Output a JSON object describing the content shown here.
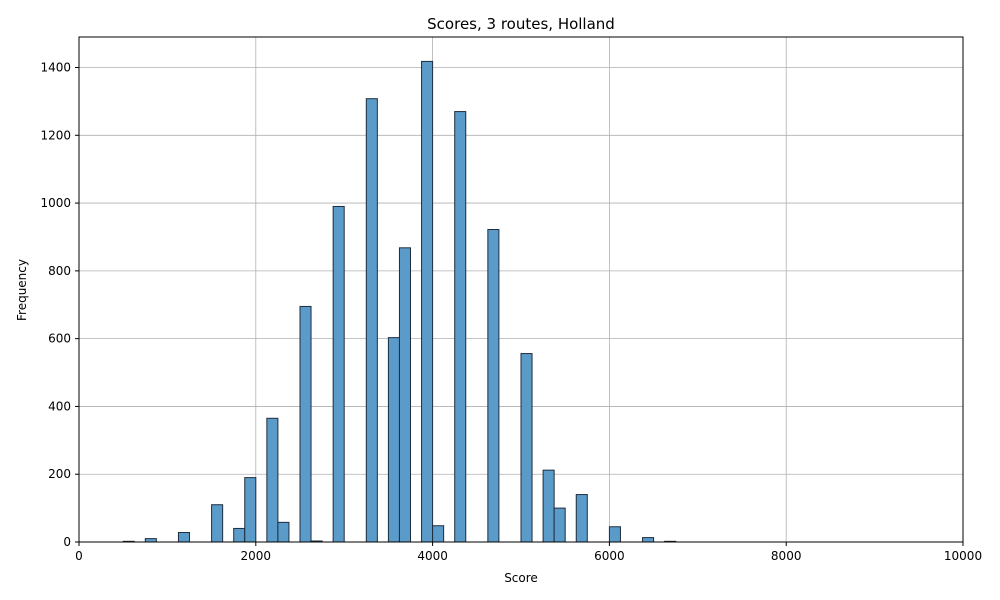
{
  "chart_data": {
    "type": "bar",
    "title": "Scores, 3 routes, Holland",
    "xlabel": "Score",
    "ylabel": "Frequency",
    "xlim": [
      0,
      10000
    ],
    "ylim": [
      0,
      1490
    ],
    "xticks": [
      0,
      2000,
      4000,
      6000,
      8000,
      10000
    ],
    "yticks": [
      0,
      200,
      400,
      600,
      800,
      1000,
      1200,
      1400
    ],
    "grid": true,
    "bin_width": 125,
    "bar_color": "#5b9bc9",
    "edge_color": "#1f2d3d",
    "bars": [
      {
        "x": 500,
        "value": 2
      },
      {
        "x": 750,
        "value": 10
      },
      {
        "x": 1125,
        "value": 28
      },
      {
        "x": 1500,
        "value": 110
      },
      {
        "x": 1750,
        "value": 40
      },
      {
        "x": 1875,
        "value": 190
      },
      {
        "x": 2125,
        "value": 365
      },
      {
        "x": 2250,
        "value": 58
      },
      {
        "x": 2500,
        "value": 695
      },
      {
        "x": 2625,
        "value": 3
      },
      {
        "x": 2875,
        "value": 990
      },
      {
        "x": 3250,
        "value": 1308
      },
      {
        "x": 3500,
        "value": 603
      },
      {
        "x": 3625,
        "value": 868
      },
      {
        "x": 3875,
        "value": 1418
      },
      {
        "x": 4000,
        "value": 48
      },
      {
        "x": 4250,
        "value": 1270
      },
      {
        "x": 4625,
        "value": 922
      },
      {
        "x": 5000,
        "value": 556
      },
      {
        "x": 5250,
        "value": 212
      },
      {
        "x": 5375,
        "value": 100
      },
      {
        "x": 5625,
        "value": 140
      },
      {
        "x": 6000,
        "value": 45
      },
      {
        "x": 6375,
        "value": 13
      },
      {
        "x": 6625,
        "value": 2
      }
    ]
  }
}
